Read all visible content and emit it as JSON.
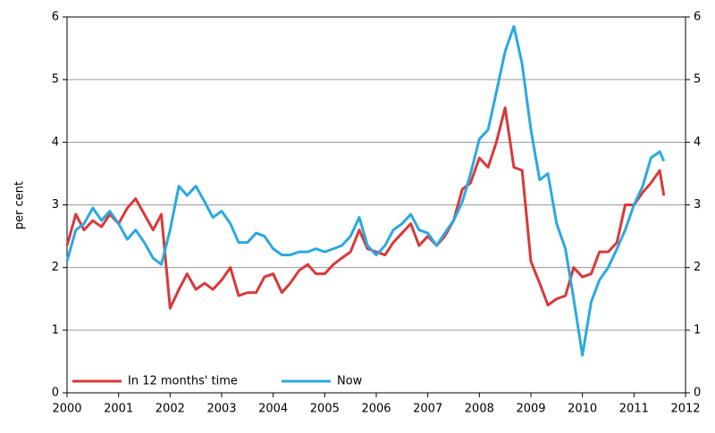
{
  "chart_data": {
    "type": "line",
    "y_label": "per cent",
    "x": [
      2000,
      2000.17,
      2000.33,
      2000.5,
      2000.67,
      2000.83,
      2001,
      2001.17,
      2001.33,
      2001.5,
      2001.67,
      2001.83,
      2002,
      2002.17,
      2002.33,
      2002.5,
      2002.67,
      2002.83,
      2003,
      2003.17,
      2003.33,
      2003.5,
      2003.67,
      2003.83,
      2004,
      2004.17,
      2004.33,
      2004.5,
      2004.67,
      2004.83,
      2005,
      2005.17,
      2005.33,
      2005.5,
      2005.67,
      2005.83,
      2006,
      2006.17,
      2006.33,
      2006.5,
      2006.67,
      2006.83,
      2007,
      2007.17,
      2007.33,
      2007.5,
      2007.67,
      2007.83,
      2008,
      2008.17,
      2008.33,
      2008.5,
      2008.67,
      2008.83,
      2009,
      2009.17,
      2009.33,
      2009.5,
      2009.67,
      2009.83,
      2010,
      2010.17,
      2010.33,
      2010.5,
      2010.67,
      2010.83,
      2011,
      2011.17,
      2011.33,
      2011.5,
      2011.58
    ],
    "series": [
      {
        "name": "In 12 months' time",
        "color": "#d9383a",
        "values": [
          2.35,
          2.85,
          2.6,
          2.75,
          2.65,
          2.85,
          2.7,
          2.95,
          3.1,
          2.85,
          2.6,
          2.85,
          1.35,
          1.65,
          1.9,
          1.65,
          1.75,
          1.65,
          1.8,
          2.0,
          1.55,
          1.6,
          1.6,
          1.85,
          1.9,
          1.6,
          1.75,
          1.95,
          2.05,
          1.9,
          1.9,
          2.05,
          2.15,
          2.25,
          2.6,
          2.3,
          2.25,
          2.2,
          2.4,
          2.55,
          2.7,
          2.35,
          2.5,
          2.35,
          2.5,
          2.75,
          3.25,
          3.35,
          3.75,
          3.6,
          4.0,
          4.55,
          3.6,
          3.55,
          2.1,
          1.75,
          1.4,
          1.5,
          1.55,
          2.0,
          1.85,
          1.9,
          2.25,
          2.25,
          2.4,
          3.0,
          3.0,
          3.2,
          3.35,
          3.55,
          3.15
        ]
      },
      {
        "name": "Now",
        "color": "#2aa9e0",
        "values": [
          2.1,
          2.6,
          2.7,
          2.95,
          2.75,
          2.9,
          2.7,
          2.45,
          2.6,
          2.4,
          2.15,
          2.05,
          2.6,
          3.3,
          3.15,
          3.3,
          3.05,
          2.8,
          2.9,
          2.7,
          2.4,
          2.4,
          2.55,
          2.5,
          2.3,
          2.2,
          2.2,
          2.25,
          2.25,
          2.3,
          2.25,
          2.3,
          2.35,
          2.5,
          2.8,
          2.35,
          2.2,
          2.35,
          2.6,
          2.7,
          2.85,
          2.6,
          2.55,
          2.35,
          2.55,
          2.75,
          3.05,
          3.5,
          4.05,
          4.2,
          4.8,
          5.45,
          5.85,
          5.25,
          4.2,
          3.4,
          3.5,
          2.7,
          2.3,
          1.5,
          0.6,
          1.45,
          1.8,
          2.0,
          2.3,
          2.6,
          3.0,
          3.3,
          3.75,
          3.85,
          3.7
        ]
      }
    ],
    "xlim": [
      2000,
      2012
    ],
    "xticks": [
      2000,
      2001,
      2002,
      2003,
      2004,
      2005,
      2006,
      2007,
      2008,
      2009,
      2010,
      2011,
      2012
    ],
    "ylim": [
      0,
      6
    ],
    "yticks": [
      0,
      1,
      2,
      3,
      4,
      5,
      6
    ],
    "grid": true,
    "legend": "lower left"
  }
}
